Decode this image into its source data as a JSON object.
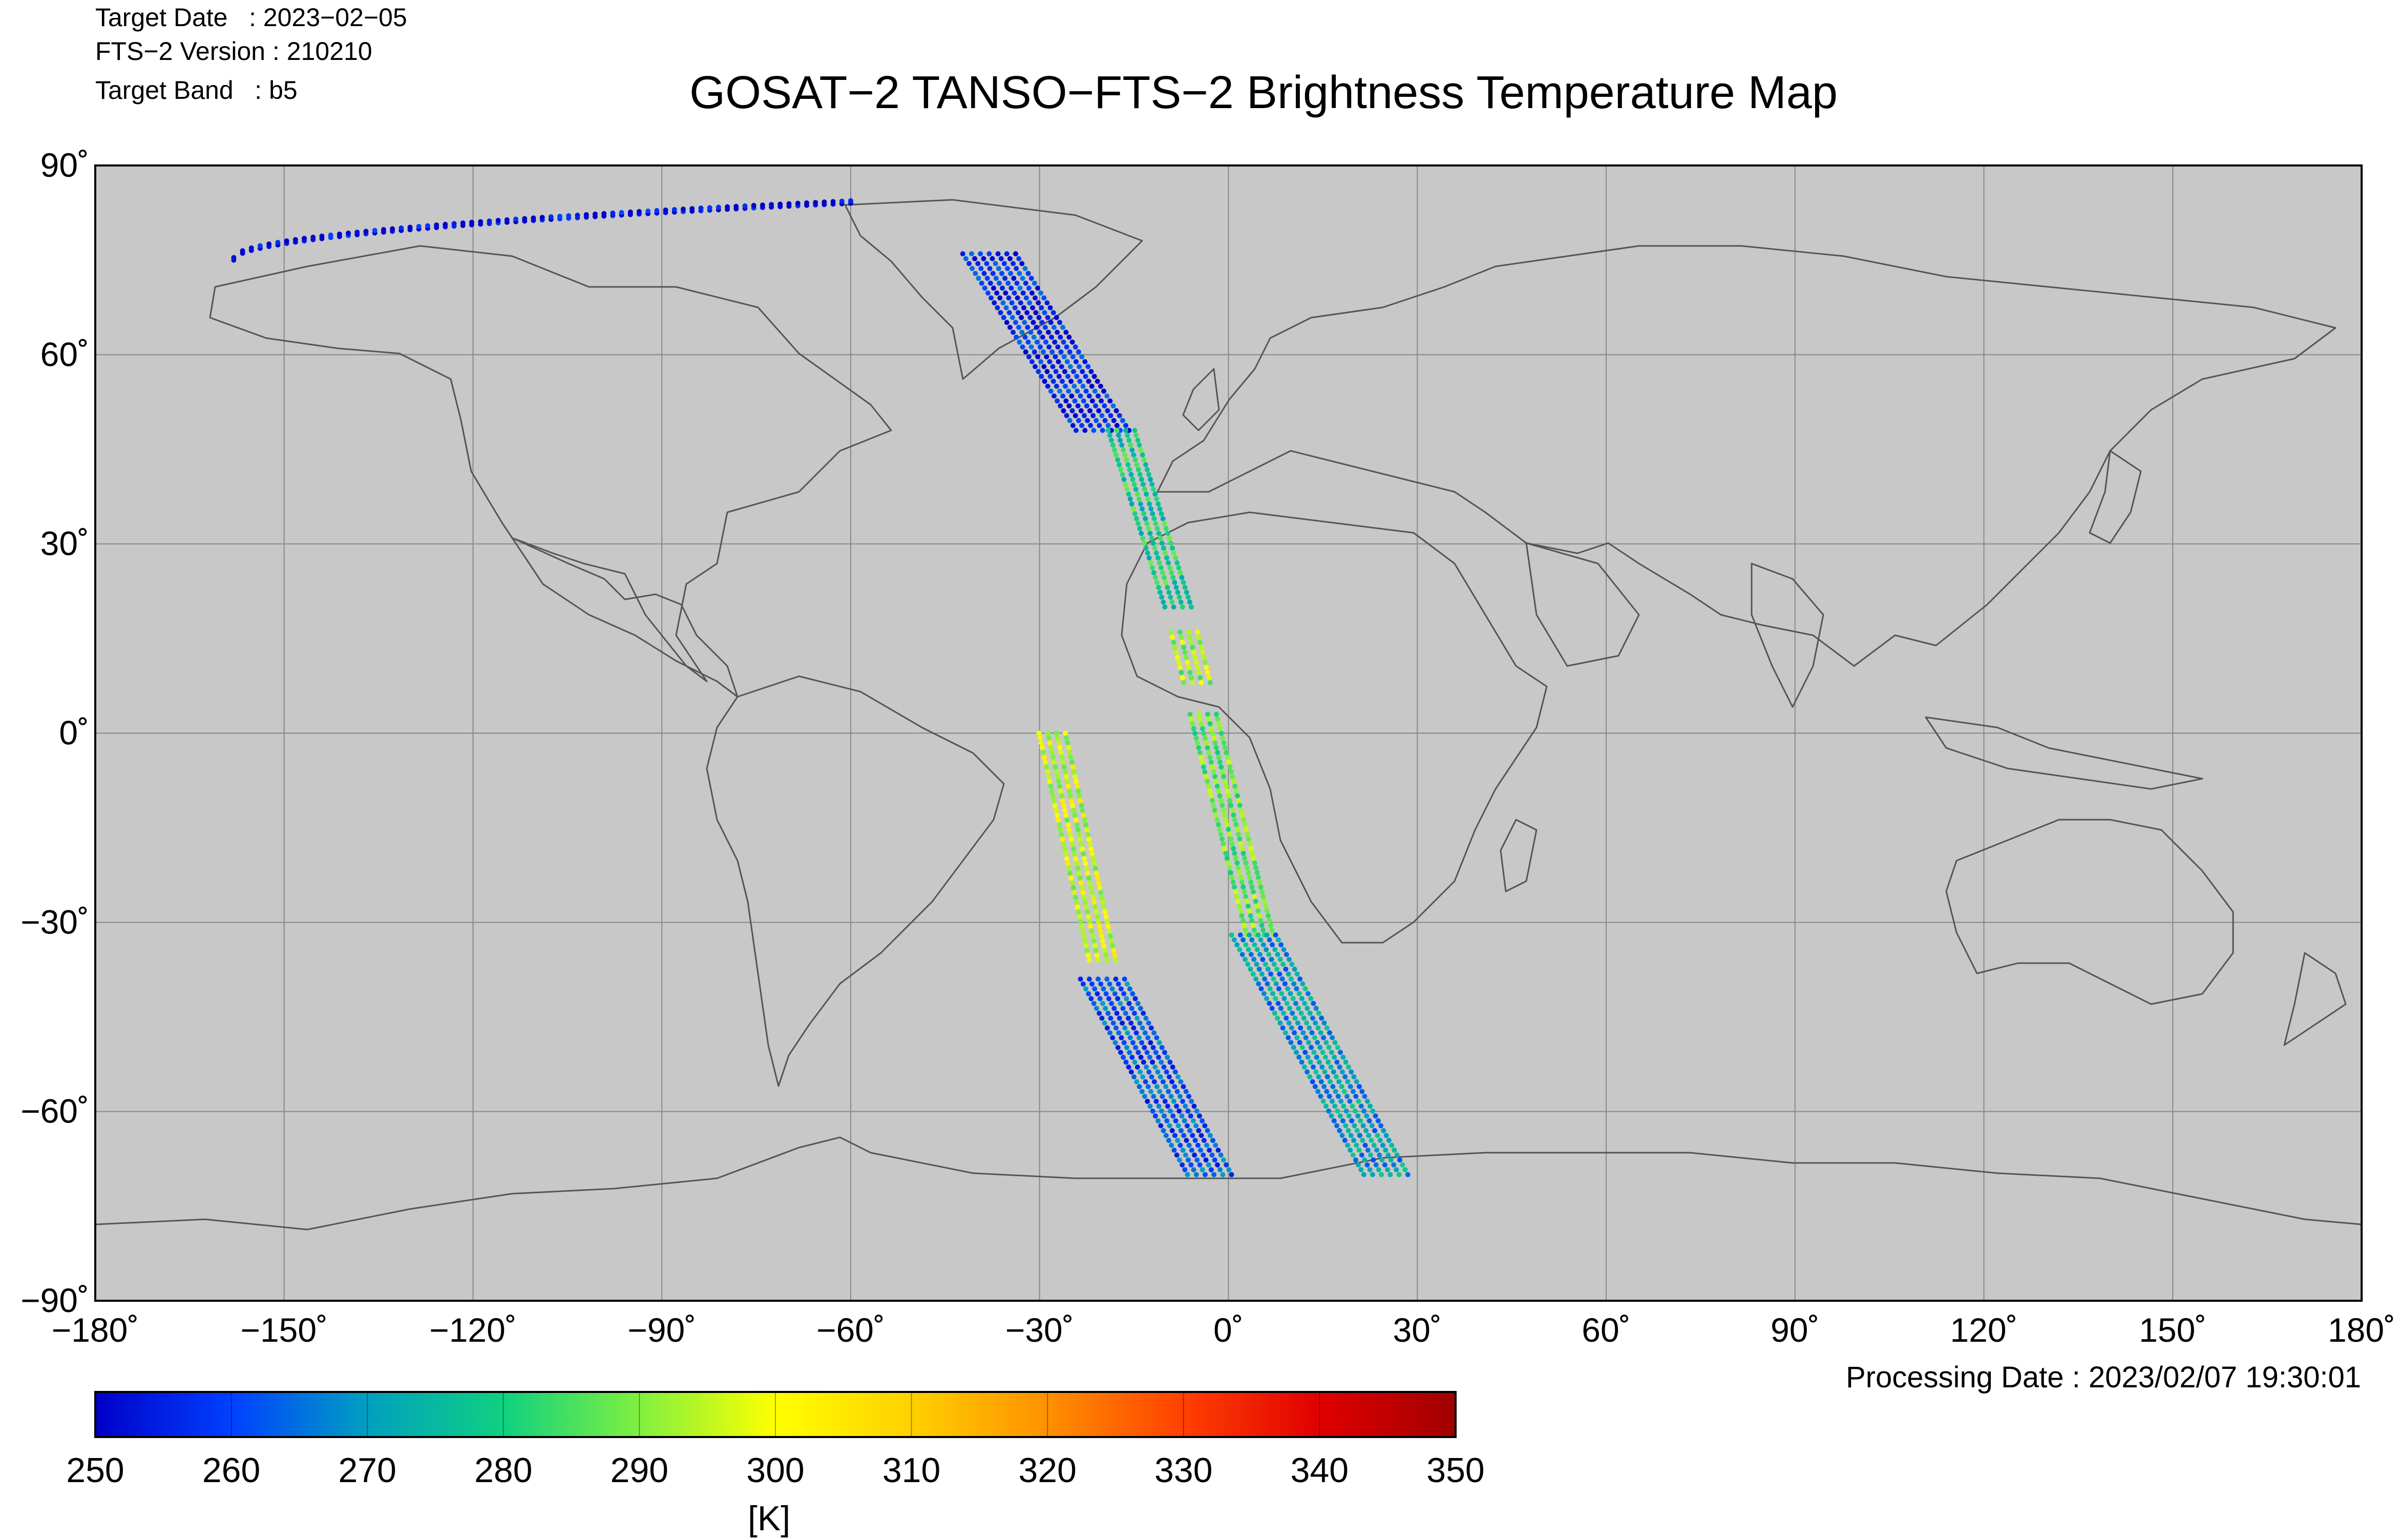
{
  "header": {
    "target_date": "Target Date   : 2023−02−05",
    "fts_version": "FTS−2 Version : 210210",
    "target_band": "Target Band   : b5",
    "title": "GOSAT−2 TANSO−FTS−2 Brightness Temperature Map"
  },
  "map": {
    "background_color": "#c8c8c8",
    "coastline_color": "#555555",
    "grid_color": "#888888",
    "grid": true,
    "lon_range": [
      -180,
      180
    ],
    "lat_range": [
      -90,
      90
    ],
    "lon_ticks": [
      {
        "value": -180,
        "label": "−180˚"
      },
      {
        "value": -150,
        "label": "−150˚"
      },
      {
        "value": -120,
        "label": "−120˚"
      },
      {
        "value": -90,
        "label": "−90˚"
      },
      {
        "value": -60,
        "label": "−60˚"
      },
      {
        "value": -30,
        "label": "−30˚"
      },
      {
        "value": 0,
        "label": "0˚"
      },
      {
        "value": 30,
        "label": "30˚"
      },
      {
        "value": 60,
        "label": "60˚"
      },
      {
        "value": 90,
        "label": "90˚"
      },
      {
        "value": 120,
        "label": "120˚"
      },
      {
        "value": 150,
        "label": "150˚"
      },
      {
        "value": 180,
        "label": "180˚"
      }
    ],
    "lat_ticks": [
      {
        "value": 90,
        "label": "90˚"
      },
      {
        "value": 60,
        "label": "60˚"
      },
      {
        "value": 30,
        "label": "30˚"
      },
      {
        "value": 0,
        "label": "0˚"
      },
      {
        "value": -30,
        "label": "−30˚"
      },
      {
        "value": -60,
        "label": "−60˚"
      },
      {
        "value": -90,
        "label": "−90˚"
      }
    ]
  },
  "chart_data": {
    "type": "scatter",
    "title": "GOSAT−2 TANSO−FTS−2 Brightness Temperature Map",
    "xlabel": "",
    "ylabel": "",
    "xlim": [
      -180,
      180
    ],
    "ylim": [
      -90,
      90
    ],
    "grid": true,
    "color_scale": {
      "min": 250,
      "max": 350,
      "unit": "[K]",
      "ticks": [
        250,
        260,
        270,
        280,
        290,
        300,
        310,
        320,
        330,
        340,
        350
      ],
      "colors": [
        "#0000c8",
        "#0040ff",
        "#00a0c0",
        "#10d080",
        "#80f040",
        "#ffff00",
        "#ffd000",
        "#ff9000",
        "#ff4000",
        "#e00000",
        "#a00000"
      ]
    },
    "tracks": [
      {
        "name": "",
        "lat_start": 75,
        "lat_end": 84,
        "lon_start": -158,
        "lon_end": -60,
        "rows": 2,
        "value": 252,
        "kind": "arc"
      },
      {
        "name": "",
        "lat_start": 76,
        "lat_end": 48,
        "lon_start": -38,
        "lon_end": -20,
        "rows": 7,
        "value": 257
      },
      {
        "name": "",
        "lat_start": 48,
        "lat_end": 20,
        "lon_start": -17,
        "lon_end": -8,
        "rows": 4,
        "value": 280
      },
      {
        "name": "",
        "lat_start": 16,
        "lat_end": 8,
        "lon_start": -7,
        "lon_end": -5,
        "rows": 4,
        "value": 292
      },
      {
        "name": "",
        "lat_start": 3,
        "lat_end": -32,
        "lon_start": -4,
        "lon_end": 5,
        "rows": 4,
        "value": 288
      },
      {
        "name": "",
        "lat_start": -32,
        "lat_end": -70,
        "lon_start": 4,
        "lon_end": 25,
        "rows": 6,
        "value": 270
      },
      {
        "name": "",
        "lat_start": 0,
        "lat_end": -36,
        "lon_start": -28,
        "lon_end": -20,
        "rows": 4,
        "value": 296
      },
      {
        "name": "",
        "lat_start": -39,
        "lat_end": -70,
        "lon_start": -20,
        "lon_end": -3,
        "rows": 6,
        "value": 262
      }
    ]
  },
  "colorbar": {
    "unit_label": "[K]",
    "tick_labels": [
      "250",
      "260",
      "270",
      "280",
      "290",
      "300",
      "310",
      "320",
      "330",
      "340",
      "350"
    ]
  },
  "footer": {
    "processing_date": "Processing Date : 2023/02/07 19:30:01"
  }
}
